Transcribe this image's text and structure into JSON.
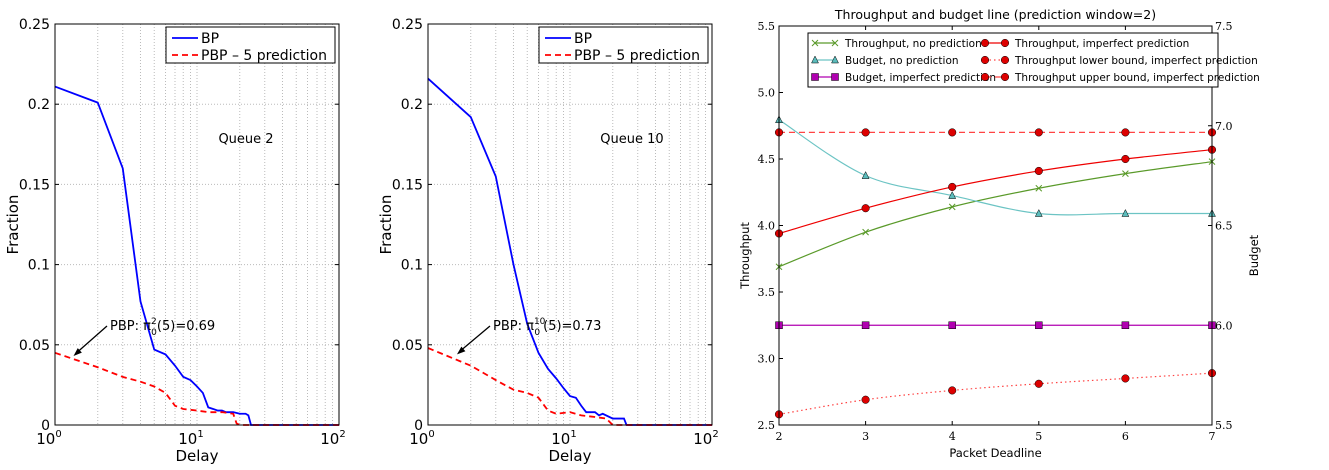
{
  "chart_data": [
    {
      "type": "line",
      "xscale": "log",
      "xlim": [
        1,
        100
      ],
      "ylim": [
        0,
        0.25
      ],
      "xlabel": "Delay",
      "ylabel": "Fraction",
      "xticks": [
        {
          "base": "10",
          "exp": "0"
        },
        {
          "base": "10",
          "exp": "1"
        },
        {
          "base": "10",
          "exp": "2"
        }
      ],
      "yticks": [
        "0",
        "0.05",
        "0.1",
        "0.15",
        "0.2",
        "0.25"
      ],
      "grid": true,
      "legend_position": "top-right",
      "text_label": "Queue 2",
      "annotation": {
        "prefix": "PBP: π",
        "sup": "2",
        "sub": "0",
        "suffix": "(5)=0.69",
        "point": [
          1.35,
          0.043
        ]
      },
      "series": [
        {
          "name": "BP",
          "color": "#0000ff",
          "style": "solid",
          "x": [
            1,
            2,
            3,
            4,
            5,
            6,
            7,
            8,
            9,
            10,
            11,
            12,
            13,
            14,
            15,
            16,
            18,
            20,
            22,
            23,
            24,
            100
          ],
          "y": [
            0.211,
            0.201,
            0.16,
            0.077,
            0.047,
            0.044,
            0.037,
            0.03,
            0.028,
            0.024,
            0.02,
            0.011,
            0.01,
            0.009,
            0.009,
            0.008,
            0.008,
            0.007,
            0.007,
            0.006,
            0,
            0
          ]
        },
        {
          "name": "PBP – 5 prediction",
          "color": "#ff0000",
          "style": "dashed",
          "x": [
            1,
            2,
            3,
            4,
            5,
            6,
            7,
            8,
            10,
            12,
            15,
            18,
            19,
            20,
            100
          ],
          "y": [
            0.045,
            0.036,
            0.03,
            0.027,
            0.024,
            0.02,
            0.012,
            0.01,
            0.009,
            0.008,
            0.008,
            0.007,
            0.001,
            0,
            0
          ]
        }
      ]
    },
    {
      "type": "line",
      "xscale": "log",
      "xlim": [
        1,
        100
      ],
      "ylim": [
        0,
        0.25
      ],
      "xlabel": "Delay",
      "ylabel": "Fraction",
      "xticks": [
        {
          "base": "10",
          "exp": "0"
        },
        {
          "base": "10",
          "exp": "1"
        },
        {
          "base": "10",
          "exp": "2"
        }
      ],
      "yticks": [
        "0",
        "0.05",
        "0.1",
        "0.15",
        "0.2",
        "0.25"
      ],
      "grid": true,
      "legend_position": "top-right",
      "text_label": "Queue 10",
      "annotation": {
        "prefix": "PBP: π",
        "sup": "10",
        "sub": "0",
        "suffix": "(5)=0.73",
        "point": [
          1.6,
          0.044
        ]
      },
      "series": [
        {
          "name": "BP",
          "color": "#0000ff",
          "style": "solid",
          "x": [
            1,
            2,
            3,
            4,
            5,
            6,
            7,
            8,
            9,
            10,
            11,
            12,
            13,
            15,
            16,
            17,
            20,
            24,
            25,
            100
          ],
          "y": [
            0.216,
            0.192,
            0.155,
            0.1,
            0.063,
            0.045,
            0.035,
            0.029,
            0.023,
            0.018,
            0.017,
            0.012,
            0.008,
            0.008,
            0.006,
            0.007,
            0.004,
            0.004,
            0,
            0
          ]
        },
        {
          "name": "PBP – 5 prediction",
          "color": "#ff0000",
          "style": "dashed",
          "x": [
            1,
            2,
            3,
            4,
            5,
            6,
            7,
            8,
            10,
            12,
            15,
            18,
            20,
            100
          ],
          "y": [
            0.048,
            0.037,
            0.028,
            0.022,
            0.02,
            0.017,
            0.009,
            0.007,
            0.008,
            0.006,
            0.005,
            0.004,
            0,
            0
          ]
        }
      ]
    },
    {
      "type": "line",
      "title": "Throughput and budget line (prediction window=2)",
      "xlabel": "Packet Deadline",
      "ylabel": "Throughput",
      "y2label": "Budget",
      "xlim": [
        2,
        7
      ],
      "ylim": [
        2.5,
        5.5
      ],
      "y2lim": [
        5.5,
        7.5
      ],
      "xticks": [
        "2",
        "3",
        "4",
        "5",
        "6",
        "7"
      ],
      "yticks": [
        "2.5",
        "3.0",
        "3.5",
        "4.0",
        "4.5",
        "5.0",
        "5.5"
      ],
      "y2ticks": [
        "5.5",
        "6.0",
        "6.5",
        "7.0",
        "7.5"
      ],
      "grid": false,
      "legend_position": "top",
      "x": [
        2,
        3,
        4,
        5,
        6,
        7
      ],
      "series": [
        {
          "name": "Throughput, no prediction",
          "axis": "left",
          "color": "#5a9a2a",
          "style": "solid",
          "marker": "x",
          "y": [
            3.69,
            3.95,
            4.14,
            4.28,
            4.39,
            4.48
          ]
        },
        {
          "name": "Budget, no prediction",
          "axis": "right",
          "color": "#6cc4c4",
          "style": "solid",
          "marker": "triangle",
          "y": [
            7.03,
            6.75,
            6.65,
            6.56,
            6.56,
            6.56
          ]
        },
        {
          "name": "Budget, imperfect prediction",
          "axis": "right",
          "color": "#b000b0",
          "style": "solid",
          "marker": "square",
          "y": [
            6.0,
            6.0,
            6.0,
            6.0,
            6.0,
            6.0
          ]
        },
        {
          "name": "Throughput, imperfect prediction",
          "axis": "left",
          "color": "#ee0000",
          "style": "solid",
          "marker": "circle",
          "y": [
            3.94,
            4.13,
            4.29,
            4.41,
            4.5,
            4.57
          ]
        },
        {
          "name": "Throughput lower bound, imperfect prediction",
          "axis": "left",
          "color": "#ff4444",
          "style": "dotted",
          "marker": "circle",
          "y": [
            2.58,
            2.69,
            2.76,
            2.81,
            2.85,
            2.89
          ]
        },
        {
          "name": "Throughput upper bound, imperfect prediction",
          "axis": "left",
          "color": "#ff4444",
          "style": "dashed",
          "marker": "circle",
          "y": [
            4.7,
            4.7,
            4.7,
            4.7,
            4.7,
            4.7
          ]
        }
      ]
    }
  ]
}
